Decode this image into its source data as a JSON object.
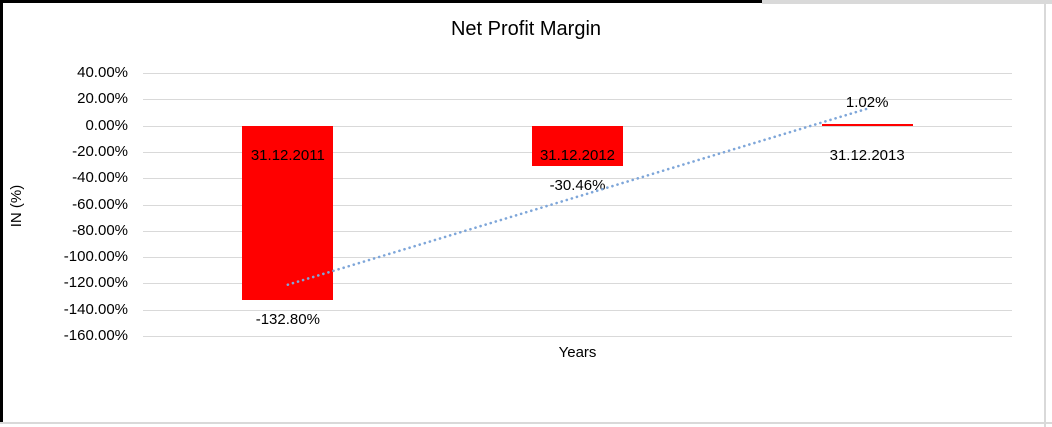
{
  "frame": {
    "border_dark_color": "#000000",
    "border_light_color": "#d9d9d9"
  },
  "chart_data": {
    "type": "bar",
    "title": "Net Profit Margin",
    "xlabel": "Years",
    "ylabel": "IN (%)",
    "categories": [
      "31.12.2011",
      "31.12.2012",
      "31.12.2013"
    ],
    "values": [
      -132.8,
      -30.46,
      1.02
    ],
    "data_labels": [
      "-132.80%",
      "-30.46%",
      "1.02%"
    ],
    "ylim": [
      -160,
      40
    ],
    "ytick_step": 20,
    "ytick_labels": [
      "40.00%",
      "20.00%",
      "0.00%",
      "-20.00%",
      "-40.00%",
      "-60.00%",
      "-80.00%",
      "-100.00%",
      "-120.00%",
      "-140.00%",
      "-160.00%"
    ],
    "grid": true,
    "legend": "none",
    "bar_color": "#ff0000",
    "gridline_color": "#d9d9d9",
    "text_color": "#000000",
    "trendline": {
      "type": "linear",
      "style": "dotted",
      "color": "#7ea6d9"
    }
  }
}
